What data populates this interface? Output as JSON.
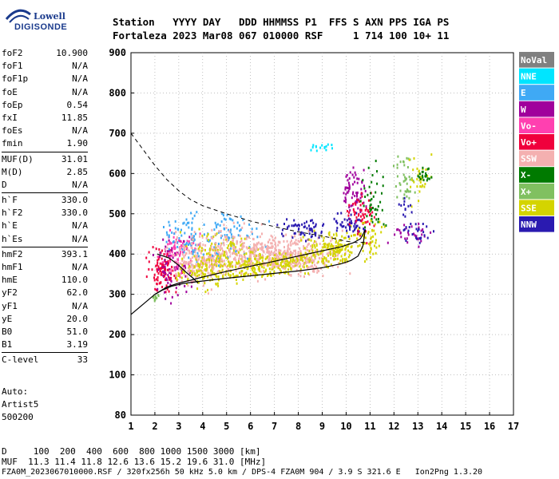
{
  "logo": {
    "line1": "Lowell",
    "line2": "DIGISONDE"
  },
  "header": {
    "line1": "Station   YYYY DAY   DDD HHMMSS P1  FFS S AXN PPS IGA PS",
    "line2": "Fortaleza 2023 Mar08 067 010000 RSF     1 714 100 10+ 11"
  },
  "params": [
    [
      {
        "k": "foF2",
        "v": "10.900"
      },
      {
        "k": "foF1",
        "v": "N/A"
      },
      {
        "k": "foF1p",
        "v": "N/A"
      },
      {
        "k": "foE",
        "v": "N/A"
      },
      {
        "k": "foEp",
        "v": "0.54"
      },
      {
        "k": "fxI",
        "v": "11.85"
      },
      {
        "k": "foEs",
        "v": "N/A"
      },
      {
        "k": "fmin",
        "v": "1.90"
      }
    ],
    [
      {
        "k": "MUF(D)",
        "v": "31.01"
      },
      {
        "k": "M(D)",
        "v": "2.85"
      },
      {
        "k": "D",
        "v": "N/A"
      }
    ],
    [
      {
        "k": "h`F",
        "v": "330.0"
      },
      {
        "k": "h`F2",
        "v": "330.0"
      },
      {
        "k": "h`E",
        "v": "N/A"
      },
      {
        "k": "h`Es",
        "v": "N/A"
      }
    ],
    [
      {
        "k": "hmF2",
        "v": "393.1"
      },
      {
        "k": "hmF1",
        "v": "N/A"
      },
      {
        "k": "hmE",
        "v": "110.0"
      },
      {
        "k": "yF2",
        "v": "62.0"
      },
      {
        "k": "yF1",
        "v": "N/A"
      },
      {
        "k": "yE",
        "v": "20.0"
      },
      {
        "k": "B0",
        "v": "51.0"
      },
      {
        "k": "B1",
        "v": "3.19"
      }
    ],
    [
      {
        "k": "C-level",
        "v": "33"
      }
    ]
  ],
  "auto": {
    "l1": "Auto:",
    "l2": "Artist5",
    "l3": "500200"
  },
  "footer": {
    "d_line": "D     100  200  400  600  800 1000 1500 3000 [km]",
    "muf_line": "MUF  11.3 11.4 11.8 12.6 13.6 15.2 19.6 31.0 [MHz]",
    "file_line": "FZA0M_2023067010000.RSF / 320fx256h 50 kHz 5.0 km / DPS-4 FZA0M 904 / 3.9 S 321.6 E   Ion2Png 1.3.20"
  },
  "chart_data": {
    "type": "scatter",
    "xlim": [
      1,
      17
    ],
    "ylim": [
      80,
      900
    ],
    "x_ticks": [
      1,
      2,
      3,
      4,
      5,
      6,
      7,
      8,
      9,
      10,
      11,
      12,
      13,
      14,
      15,
      16,
      17
    ],
    "y_ticks": [
      80,
      100,
      200,
      300,
      400,
      500,
      600,
      700,
      800,
      900
    ],
    "grid": true,
    "legend_position": "right",
    "legend": [
      {
        "label": "NoVal",
        "color": "#808080"
      },
      {
        "label": "NNE",
        "color": "#00e5ff"
      },
      {
        "label": "E",
        "color": "#3fa9f5"
      },
      {
        "label": "W",
        "color": "#a0009c"
      },
      {
        "label": "Vo-",
        "color": "#ff40b0"
      },
      {
        "label": "Vo+",
        "color": "#f0003c"
      },
      {
        "label": "SSW",
        "color": "#f4b0b0"
      },
      {
        "label": "X-",
        "color": "#007a00"
      },
      {
        "label": "X+",
        "color": "#80c060"
      },
      {
        "label": "SSE",
        "color": "#d4d400"
      },
      {
        "label": "NNW",
        "color": "#2a1ab0"
      }
    ],
    "clusters": [
      {
        "cx": 2.3,
        "cy": 360,
        "sx": 0.3,
        "sy": 25,
        "color": "#f0003c",
        "n": 110
      },
      {
        "cx": 2.7,
        "cy": 380,
        "sx": 0.35,
        "sy": 35,
        "color": "#a0009c",
        "n": 80
      },
      {
        "cx": 3.0,
        "cy": 410,
        "sx": 0.35,
        "sy": 30,
        "color": "#ff40b0",
        "n": 70
      },
      {
        "cx": 3.3,
        "cy": 440,
        "sx": 0.4,
        "sy": 30,
        "color": "#3fa9f5",
        "n": 70
      },
      {
        "cx": 3.6,
        "cy": 380,
        "sx": 0.5,
        "sy": 30,
        "color": "#f4b0b0",
        "n": 110
      },
      {
        "cx": 4.5,
        "cy": 385,
        "sx": 0.8,
        "sy": 20,
        "color": "#f4b0b0",
        "n": 150
      },
      {
        "cx": 4.2,
        "cy": 360,
        "sx": 0.6,
        "sy": 20,
        "color": "#d4d400",
        "n": 120
      },
      {
        "cx": 5.0,
        "cy": 450,
        "sx": 0.7,
        "sy": 30,
        "color": "#3fa9f5",
        "n": 90
      },
      {
        "cx": 4.8,
        "cy": 410,
        "sx": 0.7,
        "sy": 25,
        "color": "#d4d400",
        "n": 90
      },
      {
        "cx": 5.5,
        "cy": 420,
        "sx": 0.9,
        "sy": 25,
        "color": "#f4b0b0",
        "n": 130
      },
      {
        "cx": 6.1,
        "cy": 375,
        "sx": 0.5,
        "sy": 15,
        "color": "#d4d400",
        "n": 120
      },
      {
        "cx": 6.8,
        "cy": 400,
        "sx": 0.6,
        "sy": 20,
        "color": "#f4b0b0",
        "n": 110
      },
      {
        "cx": 7.6,
        "cy": 395,
        "sx": 0.7,
        "sy": 25,
        "color": "#f4b0b0",
        "n": 140
      },
      {
        "cx": 7.5,
        "cy": 380,
        "sx": 0.6,
        "sy": 12,
        "color": "#d4d400",
        "n": 110
      },
      {
        "cx": 8.5,
        "cy": 400,
        "sx": 0.7,
        "sy": 25,
        "color": "#f4b0b0",
        "n": 110
      },
      {
        "cx": 8.2,
        "cy": 465,
        "sx": 0.5,
        "sy": 15,
        "color": "#2a1ab0",
        "n": 60
      },
      {
        "cx": 9.0,
        "cy": 410,
        "sx": 0.5,
        "sy": 20,
        "color": "#d4d400",
        "n": 80
      },
      {
        "cx": 9.7,
        "cy": 420,
        "sx": 0.4,
        "sy": 20,
        "color": "#d4d400",
        "n": 80
      },
      {
        "cx": 10.1,
        "cy": 480,
        "sx": 0.3,
        "sy": 15,
        "color": "#2a1ab0",
        "n": 50
      },
      {
        "cx": 10.3,
        "cy": 560,
        "sx": 0.25,
        "sy": 35,
        "color": "#a0009c",
        "n": 70
      },
      {
        "cx": 10.6,
        "cy": 500,
        "sx": 0.3,
        "sy": 30,
        "color": "#f0003c",
        "n": 60
      },
      {
        "cx": 11.1,
        "cy": 540,
        "sx": 0.2,
        "sy": 35,
        "color": "#007a00",
        "n": 45
      },
      {
        "cx": 10.9,
        "cy": 440,
        "sx": 0.3,
        "sy": 25,
        "color": "#d4d400",
        "n": 50
      },
      {
        "cx": 12.4,
        "cy": 590,
        "sx": 0.2,
        "sy": 30,
        "color": "#80c060",
        "n": 40
      },
      {
        "cx": 13.0,
        "cy": 590,
        "sx": 0.25,
        "sy": 25,
        "color": "#d4d400",
        "n": 30
      },
      {
        "cx": 13.2,
        "cy": 600,
        "sx": 0.15,
        "sy": 10,
        "color": "#007a00",
        "n": 20
      },
      {
        "cx": 12.7,
        "cy": 450,
        "sx": 0.4,
        "sy": 15,
        "color": "#a0009c",
        "n": 30
      },
      {
        "cx": 13.0,
        "cy": 455,
        "sx": 0.3,
        "sy": 12,
        "color": "#2a1ab0",
        "n": 25
      },
      {
        "cx": 12.4,
        "cy": 520,
        "sx": 0.15,
        "sy": 15,
        "color": "#2a1ab0",
        "n": 12
      },
      {
        "cx": 8.9,
        "cy": 670,
        "sx": 0.3,
        "sy": 6,
        "color": "#00e5ff",
        "n": 15
      },
      {
        "cx": 2.0,
        "cy": 295,
        "sx": 0.1,
        "sy": 5,
        "color": "#80c060",
        "n": 12
      }
    ],
    "curve_real": [
      [
        2.0,
        300
      ],
      [
        2.3,
        310
      ],
      [
        2.7,
        320
      ],
      [
        3.2,
        327
      ],
      [
        4.0,
        333
      ],
      [
        5.0,
        340
      ],
      [
        6.0,
        346
      ],
      [
        7.0,
        352
      ],
      [
        8.0,
        358
      ],
      [
        9.0,
        366
      ],
      [
        9.8,
        376
      ],
      [
        10.2,
        384
      ],
      [
        10.5,
        395
      ],
      [
        10.7,
        420
      ],
      [
        10.8,
        460
      ]
    ],
    "curve_virtual": [
      [
        1.0,
        250
      ],
      [
        1.5,
        275
      ],
      [
        2.0,
        300
      ],
      [
        2.5,
        318
      ],
      [
        3.0,
        328
      ],
      [
        3.5,
        335
      ],
      [
        4.0,
        343
      ],
      [
        5.0,
        357
      ],
      [
        6.0,
        370
      ],
      [
        7.0,
        382
      ],
      [
        8.0,
        395
      ],
      [
        9.0,
        408
      ],
      [
        9.8,
        418
      ],
      [
        10.3,
        428
      ],
      [
        10.6,
        438
      ],
      [
        10.8,
        460
      ]
    ],
    "curve_trace": [
      [
        2.1,
        400
      ],
      [
        2.6,
        390
      ],
      [
        3.0,
        372
      ],
      [
        3.3,
        355
      ],
      [
        3.6,
        340
      ],
      [
        3.8,
        328
      ]
    ],
    "curve_dashed": [
      [
        1.0,
        700
      ],
      [
        1.5,
        660
      ],
      [
        2.0,
        620
      ],
      [
        2.5,
        585
      ],
      [
        3.0,
        557
      ],
      [
        3.5,
        535
      ],
      [
        4.0,
        520
      ],
      [
        5.0,
        500
      ],
      [
        6.0,
        482
      ],
      [
        7.0,
        468
      ],
      [
        8.0,
        455
      ],
      [
        9.0,
        445
      ],
      [
        10.0,
        432
      ],
      [
        10.5,
        428
      ],
      [
        10.8,
        430
      ]
    ]
  }
}
